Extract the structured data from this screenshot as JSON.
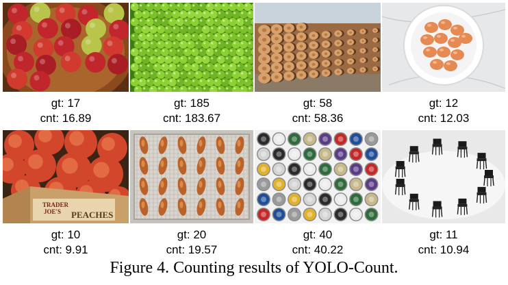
{
  "figure": {
    "caption": "Figure 4. Counting results of YOLO-Count.",
    "panels": [
      {
        "subject": "apples",
        "gt": "gt: 17",
        "cnt": "cnt: 16.89"
      },
      {
        "subject": "green peas",
        "gt": "gt: 185",
        "cnt": "cnt: 183.67"
      },
      {
        "subject": "log pile",
        "gt": "gt: 58",
        "cnt": "cnt: 58.36"
      },
      {
        "subject": "eggs in bowl",
        "gt": "gt: 12",
        "cnt": "cnt: 12.03"
      },
      {
        "subject": "peaches in crate",
        "gt": "gt: 10",
        "cnt": "cnt: 9.91"
      },
      {
        "subject": "chicken wings on rack",
        "gt": "gt: 20",
        "cnt": "cnt: 19.57"
      },
      {
        "subject": "bottle caps",
        "gt": "gt: 40",
        "cnt": "cnt: 40.22"
      },
      {
        "subject": "chairs in circle",
        "gt": "gt: 11",
        "cnt": "cnt: 10.94"
      }
    ],
    "crate_label": {
      "line1": "TRADER",
      "line2": "JOE'S",
      "word": "PEACHES"
    }
  }
}
